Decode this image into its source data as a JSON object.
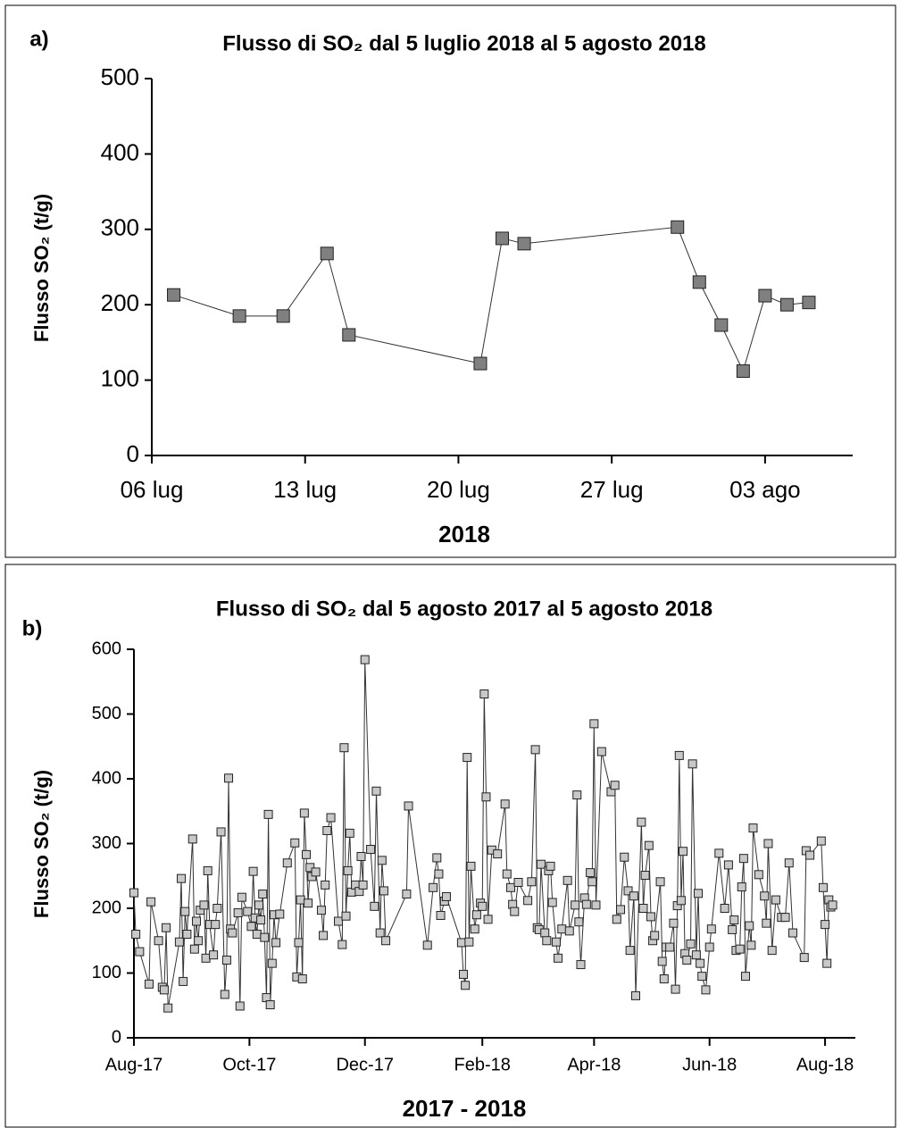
{
  "chart_data": [
    {
      "type": "line",
      "label": "a)",
      "title": "Flusso di SO₂ dal 5 luglio 2018 al 5 agosto 2018",
      "x": [
        "2018-07-07",
        "2018-07-10",
        "2018-07-12",
        "2018-07-14",
        "2018-07-15",
        "2018-07-21",
        "2018-07-22",
        "2018-07-23",
        "2018-07-30",
        "2018-07-31",
        "2018-08-01",
        "2018-08-02",
        "2018-08-03",
        "2018-08-04",
        "2018-08-05"
      ],
      "values": [
        213,
        185,
        185,
        268,
        160,
        122,
        288,
        281,
        303,
        230,
        173,
        112,
        212,
        200,
        203
      ],
      "color": "#808080",
      "xlim": [
        "2018-07-06",
        "2018-08-07"
      ],
      "xticks": [
        {
          "value": "2018-07-06",
          "label": "06 lug"
        },
        {
          "value": "2018-07-13",
          "label": "13 lug"
        },
        {
          "value": "2018-07-20",
          "label": "20 lug"
        },
        {
          "value": "2018-07-27",
          "label": "27 lug"
        },
        {
          "value": "2018-08-03",
          "label": "03 ago"
        }
      ],
      "ylim": [
        0,
        500
      ],
      "yticks": [
        0,
        100,
        200,
        300,
        400,
        500
      ],
      "xlabel": "2018",
      "ylabel": "Flusso SO₂ (t/g)"
    },
    {
      "type": "line",
      "label": "b)",
      "title": "Flusso di SO₂ dal 5 agosto 2017 al 5 agosto 2018",
      "x": [
        "2017-08-01",
        "2017-08-02",
        "2017-08-04",
        "2017-08-09",
        "2017-08-10",
        "2017-08-14",
        "2017-08-16",
        "2017-08-17",
        "2017-08-18",
        "2017-08-19",
        "2017-08-25",
        "2017-08-26",
        "2017-08-27",
        "2017-08-28",
        "2017-08-29",
        "2017-09-01",
        "2017-09-02",
        "2017-09-03",
        "2017-09-04",
        "2017-09-05",
        "2017-09-07",
        "2017-09-08",
        "2017-09-09",
        "2017-09-10",
        "2017-09-12",
        "2017-09-13",
        "2017-09-14",
        "2017-09-16",
        "2017-09-18",
        "2017-09-19",
        "2017-09-20",
        "2017-09-21",
        "2017-09-22",
        "2017-09-25",
        "2017-09-26",
        "2017-09-27",
        "2017-09-30",
        "2017-10-02",
        "2017-10-03",
        "2017-10-04",
        "2017-10-05",
        "2017-10-06",
        "2017-10-07",
        "2017-10-08",
        "2017-10-09",
        "2017-10-10",
        "2017-10-11",
        "2017-10-12",
        "2017-10-13",
        "2017-10-14",
        "2017-10-15",
        "2017-10-17",
        "2017-10-21",
        "2017-10-25",
        "2017-10-26",
        "2017-10-27",
        "2017-10-28",
        "2017-10-29",
        "2017-10-30",
        "2017-10-31",
        "2017-11-01",
        "2017-11-02",
        "2017-11-03",
        "2017-11-05",
        "2017-11-08",
        "2017-11-09",
        "2017-11-10",
        "2017-11-11",
        "2017-11-13",
        "2017-11-17",
        "2017-11-19",
        "2017-11-20",
        "2017-11-21",
        "2017-11-22",
        "2017-11-23",
        "2017-11-24",
        "2017-11-26",
        "2017-11-28",
        "2017-11-29",
        "2017-11-30",
        "2017-12-01",
        "2017-12-04",
        "2017-12-06",
        "2017-12-07",
        "2017-12-09",
        "2017-12-10",
        "2017-12-11",
        "2017-12-12",
        "2017-12-23",
        "2017-12-24",
        "2018-01-03",
        "2018-01-06",
        "2018-01-08",
        "2018-01-09",
        "2018-01-10",
        "2018-01-12",
        "2018-01-13",
        "2018-01-21",
        "2018-01-22",
        "2018-01-23",
        "2018-01-24",
        "2018-01-25",
        "2018-01-26",
        "2018-01-28",
        "2018-01-29",
        "2018-01-31",
        "2018-02-01",
        "2018-02-02",
        "2018-02-03",
        "2018-02-04",
        "2018-02-06",
        "2018-02-09",
        "2018-02-13",
        "2018-02-14",
        "2018-02-16",
        "2018-02-17",
        "2018-02-18",
        "2018-02-20",
        "2018-02-25",
        "2018-02-27",
        "2018-03-01",
        "2018-03-02",
        "2018-03-03",
        "2018-03-04",
        "2018-03-06",
        "2018-03-07",
        "2018-03-08",
        "2018-03-09",
        "2018-03-10",
        "2018-03-12",
        "2018-03-13",
        "2018-03-15",
        "2018-03-18",
        "2018-03-19",
        "2018-03-22",
        "2018-03-23",
        "2018-03-24",
        "2018-03-25",
        "2018-03-27",
        "2018-03-28",
        "2018-03-30",
        "2018-03-31",
        "2018-04-01",
        "2018-04-02",
        "2018-04-05",
        "2018-04-10",
        "2018-04-12",
        "2018-04-13",
        "2018-04-15",
        "2018-04-17",
        "2018-04-19",
        "2018-04-20",
        "2018-04-22",
        "2018-04-23",
        "2018-04-26",
        "2018-04-27",
        "2018-04-28",
        "2018-04-30",
        "2018-05-01",
        "2018-05-02",
        "2018-05-03",
        "2018-05-06",
        "2018-05-07",
        "2018-05-08",
        "2018-05-09",
        "2018-05-11",
        "2018-05-13",
        "2018-05-14",
        "2018-05-15",
        "2018-05-16",
        "2018-05-17",
        "2018-05-18",
        "2018-05-19",
        "2018-05-20",
        "2018-05-22",
        "2018-05-23",
        "2018-05-25",
        "2018-05-26",
        "2018-05-27",
        "2018-05-28",
        "2018-05-30",
        "2018-06-01",
        "2018-06-02",
        "2018-06-06",
        "2018-06-09",
        "2018-06-11",
        "2018-06-13",
        "2018-06-14",
        "2018-06-15",
        "2018-06-17",
        "2018-06-18",
        "2018-06-19",
        "2018-06-20",
        "2018-06-22",
        "2018-06-23",
        "2018-06-24",
        "2018-06-27",
        "2018-06-30",
        "2018-07-01",
        "2018-07-02",
        "2018-07-04",
        "2018-07-06",
        "2018-07-09",
        "2018-07-11",
        "2018-07-13",
        "2018-07-15",
        "2018-07-21",
        "2018-07-22",
        "2018-07-24",
        "2018-07-30",
        "2018-07-31",
        "2018-08-01",
        "2018-08-02",
        "2018-08-03",
        "2018-08-04",
        "2018-08-05"
      ],
      "values": [
        224,
        160,
        133,
        83,
        210,
        150,
        78,
        74,
        170,
        46,
        148,
        246,
        87,
        195,
        160,
        307,
        137,
        180,
        150,
        197,
        205,
        123,
        258,
        175,
        128,
        175,
        200,
        318,
        67,
        120,
        401,
        168,
        162,
        193,
        49,
        217,
        195,
        172,
        257,
        185,
        160,
        205,
        182,
        222,
        155,
        62,
        345,
        51,
        115,
        190,
        147,
        191,
        270,
        301,
        94,
        147,
        213,
        91,
        347,
        283,
        208,
        263,
        249,
        256,
        197,
        158,
        236,
        320,
        340,
        180,
        144,
        448,
        188,
        258,
        316,
        225,
        236,
        226,
        280,
        236,
        584,
        291,
        203,
        381,
        162,
        274,
        227,
        150,
        222,
        358,
        143,
        232,
        278,
        253,
        189,
        211,
        218,
        147,
        98,
        81,
        433,
        148,
        265,
        168,
        190,
        208,
        203,
        531,
        372,
        183,
        290,
        284,
        361,
        253,
        232,
        206,
        195,
        240,
        212,
        241,
        445,
        170,
        167,
        268,
        162,
        150,
        258,
        265,
        209,
        148,
        123,
        168,
        243,
        165,
        205,
        375,
        179,
        113,
        216,
        206,
        255,
        241,
        485,
        205,
        442,
        380,
        390,
        183,
        198,
        279,
        227,
        135,
        219,
        65,
        333,
        200,
        251,
        297,
        187,
        150,
        158,
        241,
        118,
        91,
        140,
        140,
        177,
        75,
        204,
        436,
        212,
        288,
        130,
        120,
        145,
        423,
        128,
        223,
        115,
        95,
        74,
        140,
        168,
        285,
        200,
        267,
        167,
        182,
        135,
        137,
        233,
        277,
        95,
        173,
        143,
        324,
        252,
        219,
        177,
        300,
        135,
        213,
        186,
        186,
        270,
        162,
        124,
        289,
        282,
        304,
        232,
        175,
        115,
        213,
        202,
        205
      ],
      "color": "#c8c8c8",
      "xlim": [
        "2017-08-01",
        "2018-08-17"
      ],
      "xticks": [
        {
          "value": "2017-08-01",
          "label": "Aug-17"
        },
        {
          "value": "2017-10-01",
          "label": "Oct-17"
        },
        {
          "value": "2017-12-01",
          "label": "Dec-17"
        },
        {
          "value": "2018-02-01",
          "label": "Feb-18"
        },
        {
          "value": "2018-04-01",
          "label": "Apr-18"
        },
        {
          "value": "2018-06-01",
          "label": "Jun-18"
        },
        {
          "value": "2018-08-01",
          "label": "Aug-18"
        }
      ],
      "ylim": [
        0,
        600
      ],
      "yticks": [
        0,
        100,
        200,
        300,
        400,
        500,
        600
      ],
      "xlabel": "2017 - 2018",
      "ylabel": "Flusso SO₂ (t/g)"
    }
  ]
}
